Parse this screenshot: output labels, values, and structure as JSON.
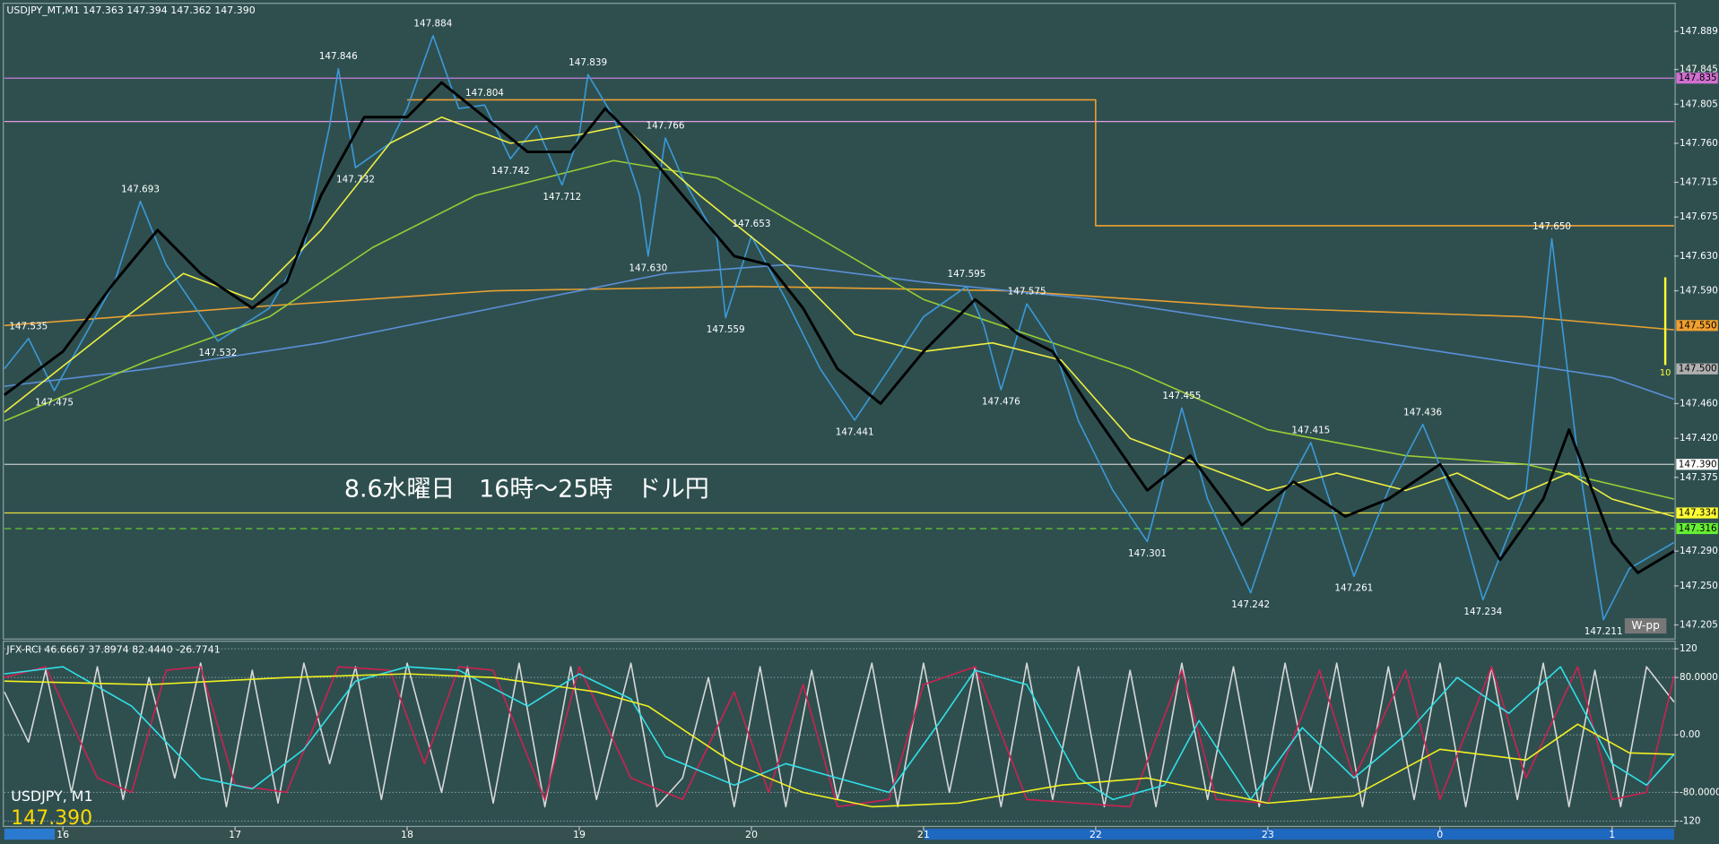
{
  "chart_data": [
    {
      "type": "line",
      "title": "USDJPY_MT,M1  147.363 147.394 147.362 147.390",
      "annotation_text": "8.6水曜日　16時～25時　ドル円",
      "symbol": "USDJPY, M1",
      "last_price": {
        "value": 147.39,
        "label": "147.390"
      },
      "pivot_label": "W-pp",
      "period_label": "10",
      "xlim": [
        15.66,
        25.36
      ],
      "xticks": [
        16,
        17,
        18,
        19,
        20,
        21,
        22,
        23,
        {
          "value": 24,
          "label": "0"
        },
        {
          "value": 25,
          "label": "1"
        }
      ],
      "ylim": [
        147.19,
        147.92
      ],
      "yticks": [
        147.889,
        147.845,
        147.805,
        {
          "value": 147.76,
          "label": "147.760"
        },
        147.715,
        147.675,
        {
          "value": 147.63,
          "label": "147.630"
        },
        {
          "value": 147.59,
          "label": "147.590"
        },
        {
          "value": 147.46,
          "label": "147.460"
        },
        {
          "value": 147.42,
          "label": "147.420"
        },
        147.375,
        {
          "value": 147.29,
          "label": "147.290"
        },
        {
          "value": 147.25,
          "label": "147.250"
        },
        147.205
      ],
      "levels": [
        {
          "value": 147.835,
          "color": "#c77dd6"
        },
        {
          "value": 147.785,
          "color": "#e29ae8"
        },
        {
          "value": 147.39,
          "color": "#c8c8c8"
        },
        {
          "value": 147.334,
          "color": "#e8e040"
        },
        {
          "value": 147.316,
          "color": "#66cc33",
          "dash": true
        }
      ],
      "price_tags": [
        {
          "value": 147.835,
          "color": "#d070d0"
        },
        {
          "value": 147.55,
          "label": "147.550",
          "color": "#f0a030"
        },
        {
          "value": 147.5,
          "label": "147.500",
          "color": "#b0b0b0"
        },
        {
          "value": 147.39,
          "label": "147.390",
          "color": "#ffffff"
        },
        {
          "value": 147.334,
          "color": "#ffff33"
        },
        {
          "value": 147.316,
          "color": "#66ee33"
        }
      ],
      "series": [
        {
          "color": "#f0a030",
          "x": [
            18,
            22,
            22,
            25.36
          ],
          "values": [
            147.81,
            147.81,
            147.665,
            147.665
          ]
        },
        {
          "color": "#e8a030",
          "x": [
            15.66,
            17,
            18.5,
            20,
            21.5,
            23,
            24.5,
            25.36
          ],
          "values": [
            147.55,
            147.57,
            147.59,
            147.595,
            147.59,
            147.57,
            147.56,
            147.545
          ]
        },
        {
          "color": "#5b8fd8",
          "x": [
            15.66,
            16.5,
            17.5,
            18.5,
            19.5,
            20.2,
            21,
            22,
            23,
            24,
            25,
            25.36
          ],
          "values": [
            147.48,
            147.5,
            147.53,
            147.57,
            147.61,
            147.62,
            147.6,
            147.58,
            147.55,
            147.52,
            147.49,
            147.465
          ]
        },
        {
          "color": "#9acd32",
          "x": [
            15.66,
            16.5,
            17.2,
            17.8,
            18.4,
            19.2,
            19.8,
            20.4,
            21,
            21.6,
            22.2,
            23,
            23.8,
            24.5,
            25.36
          ],
          "values": [
            147.44,
            147.51,
            147.56,
            147.64,
            147.7,
            147.74,
            147.72,
            147.65,
            147.58,
            147.54,
            147.5,
            147.43,
            147.4,
            147.39,
            147.35
          ]
        },
        {
          "color": "#3a9ad9",
          "x": [
            15.66,
            15.8,
            15.95,
            16.3,
            16.45,
            16.6,
            16.9,
            17.2,
            17.4,
            17.55,
            17.6,
            17.7,
            17.9,
            18,
            18.15,
            18.3,
            18.45,
            18.6,
            18.75,
            18.9,
            19,
            19.05,
            19.2,
            19.35,
            19.4,
            19.5,
            19.6,
            19.8,
            19.85,
            20,
            20.2,
            20.4,
            20.6,
            20.8,
            21,
            21.25,
            21.35,
            21.45,
            21.6,
            21.75,
            21.9,
            22.1,
            22.3,
            22.5,
            22.65,
            22.9,
            23.1,
            23.25,
            23.5,
            23.7,
            23.9,
            24.1,
            24.25,
            24.5,
            24.65,
            24.8,
            24.95,
            25.1,
            25.36
          ],
          "values": [
            147.5,
            147.535,
            147.475,
            147.6,
            147.693,
            147.62,
            147.532,
            147.57,
            147.64,
            147.78,
            147.846,
            147.732,
            147.76,
            147.8,
            147.884,
            147.8,
            147.804,
            147.742,
            147.78,
            147.712,
            147.77,
            147.839,
            147.79,
            147.7,
            147.63,
            147.766,
            147.72,
            147.65,
            147.559,
            147.653,
            147.58,
            147.5,
            147.441,
            147.5,
            147.56,
            147.595,
            147.55,
            147.476,
            147.575,
            147.53,
            147.44,
            147.36,
            147.301,
            147.455,
            147.35,
            147.242,
            147.36,
            147.415,
            147.261,
            147.36,
            147.436,
            147.34,
            147.234,
            147.36,
            147.65,
            147.4,
            147.211,
            147.27,
            147.3
          ]
        },
        {
          "color": "#f0f040",
          "x": [
            15.66,
            16.3,
            16.7,
            17.1,
            17.5,
            17.9,
            18.2,
            18.6,
            19,
            19.25,
            19.7,
            20.2,
            20.6,
            21,
            21.4,
            21.8,
            22.2,
            22.6,
            23,
            23.4,
            23.8,
            24.1,
            24.4,
            24.75,
            25,
            25.36
          ],
          "values": [
            147.45,
            147.55,
            147.61,
            147.58,
            147.66,
            147.76,
            147.79,
            147.76,
            147.77,
            147.78,
            147.7,
            147.62,
            147.54,
            147.52,
            147.53,
            147.51,
            147.42,
            147.39,
            147.36,
            147.38,
            147.36,
            147.38,
            147.35,
            147.38,
            147.35,
            147.33
          ]
        },
        {
          "color": "#000000",
          "x": [
            15.66,
            16,
            16.3,
            16.55,
            16.8,
            17.1,
            17.3,
            17.5,
            17.75,
            18,
            18.2,
            18.45,
            18.7,
            18.95,
            19.15,
            19.35,
            19.6,
            19.9,
            20.1,
            20.3,
            20.5,
            20.75,
            21,
            21.3,
            21.55,
            21.75,
            21.95,
            22.3,
            22.55,
            22.85,
            23.15,
            23.45,
            23.7,
            24,
            24.35,
            24.6,
            24.75,
            25,
            25.15,
            25.36
          ],
          "values": [
            147.47,
            147.52,
            147.6,
            147.66,
            147.61,
            147.57,
            147.6,
            147.7,
            147.79,
            147.79,
            147.83,
            147.79,
            147.75,
            147.75,
            147.8,
            147.76,
            147.7,
            147.63,
            147.62,
            147.57,
            147.5,
            147.46,
            147.52,
            147.58,
            147.54,
            147.52,
            147.46,
            147.36,
            147.4,
            147.32,
            147.37,
            147.33,
            147.35,
            147.39,
            147.28,
            147.35,
            147.43,
            147.3,
            147.265,
            147.29
          ]
        }
      ],
      "high_labels": [
        {
          "x": 15.8,
          "value": 147.535
        },
        {
          "x": 16.45,
          "value": 147.693
        },
        {
          "x": 17.6,
          "value": 147.846
        },
        {
          "x": 18.15,
          "value": 147.884
        },
        {
          "x": 18.45,
          "value": 147.804
        },
        {
          "x": 19.05,
          "value": 147.839
        },
        {
          "x": 19.5,
          "value": 147.766
        },
        {
          "x": 20,
          "value": 147.653
        },
        {
          "x": 21.25,
          "value": 147.595
        },
        {
          "x": 21.6,
          "value": 147.575
        },
        {
          "x": 22.5,
          "value": 147.455
        },
        {
          "x": 23.25,
          "value": 147.415
        },
        {
          "x": 23.9,
          "value": 147.436
        },
        {
          "x": 24.65,
          "value": 147.65,
          "label": "147.650"
        }
      ],
      "low_labels": [
        {
          "x": 15.95,
          "value": 147.475
        },
        {
          "x": 16.9,
          "value": 147.532
        },
        {
          "x": 17.7,
          "value": 147.732
        },
        {
          "x": 18.6,
          "value": 147.742
        },
        {
          "x": 18.9,
          "value": 147.712
        },
        {
          "x": 19.4,
          "value": 147.63,
          "label": "147.630"
        },
        {
          "x": 19.85,
          "value": 147.559
        },
        {
          "x": 20.6,
          "value": 147.441
        },
        {
          "x": 21.45,
          "value": 147.476
        },
        {
          "x": 22.3,
          "value": 147.301
        },
        {
          "x": 22.9,
          "value": 147.242
        },
        {
          "x": 23.5,
          "value": 147.261
        },
        {
          "x": 24.25,
          "value": 147.234
        },
        {
          "x": 24.95,
          "value": 147.211
        }
      ]
    },
    {
      "type": "line",
      "title": "JFX-RCI 46.6667 37.8974 82.4440 -26.7741",
      "grid": true,
      "ylim": [
        -126,
        129
      ],
      "yticks": [
        120,
        {
          "value": 80,
          "label": "80.0000"
        },
        {
          "value": 0,
          "label": "0.00"
        },
        {
          "value": -80,
          "label": "-80.0000"
        },
        -120
      ],
      "series": [
        {
          "color": "#d8d8d8",
          "x": [
            15.66,
            15.8,
            15.9,
            16.05,
            16.2,
            16.35,
            16.5,
            16.65,
            16.8,
            16.95,
            17.1,
            17.25,
            17.4,
            17.55,
            17.7,
            17.85,
            18,
            18.2,
            18.35,
            18.5,
            18.65,
            18.8,
            18.95,
            19.1,
            19.3,
            19.45,
            19.6,
            19.75,
            19.9,
            20.05,
            20.2,
            20.35,
            20.5,
            20.7,
            20.85,
            21,
            21.15,
            21.3,
            21.45,
            21.6,
            21.75,
            21.9,
            22.05,
            22.2,
            22.35,
            22.5,
            22.65,
            22.8,
            22.95,
            23.1,
            23.25,
            23.4,
            23.55,
            23.7,
            23.85,
            24,
            24.15,
            24.3,
            24.45,
            24.6,
            24.75,
            24.9,
            25.05,
            25.2,
            25.36
          ],
          "values": [
            60,
            -10,
            90,
            -80,
            95,
            -90,
            80,
            -60,
            100,
            -100,
            90,
            -95,
            100,
            -40,
            95,
            -90,
            100,
            -80,
            95,
            -95,
            100,
            -100,
            95,
            -90,
            100,
            -100,
            -60,
            80,
            -100,
            95,
            -100,
            90,
            -90,
            100,
            -100,
            100,
            -80,
            95,
            -100,
            100,
            -90,
            95,
            -100,
            90,
            -100,
            100,
            -90,
            95,
            -100,
            100,
            -80,
            100,
            -100,
            95,
            -90,
            100,
            -100,
            95,
            -90,
            100,
            -100,
            90,
            -100,
            95,
            46
          ]
        },
        {
          "color": "#d02050",
          "x": [
            15.66,
            15.9,
            16.2,
            16.4,
            16.6,
            16.8,
            17,
            17.3,
            17.6,
            17.9,
            18.1,
            18.3,
            18.5,
            18.8,
            19,
            19.3,
            19.6,
            19.9,
            20.1,
            20.3,
            20.5,
            20.8,
            21,
            21.3,
            21.6,
            21.9,
            22.2,
            22.5,
            22.7,
            23,
            23.3,
            23.5,
            23.8,
            24,
            24.3,
            24.5,
            24.8,
            25,
            25.2,
            25.36
          ],
          "values": [
            80,
            95,
            -60,
            -80,
            90,
            95,
            -70,
            -80,
            95,
            90,
            -40,
            95,
            90,
            -90,
            95,
            -60,
            -90,
            60,
            -80,
            70,
            -100,
            -90,
            70,
            95,
            -90,
            -95,
            -100,
            90,
            -90,
            -95,
            90,
            -60,
            90,
            -90,
            95,
            -60,
            95,
            -90,
            -80,
            82
          ]
        },
        {
          "color": "#30e0e8",
          "x": [
            15.66,
            16,
            16.4,
            16.8,
            17.1,
            17.4,
            17.7,
            18,
            18.3,
            18.7,
            19,
            19.3,
            19.5,
            19.9,
            20.2,
            20.5,
            20.8,
            21.1,
            21.3,
            21.6,
            21.9,
            22.1,
            22.4,
            22.6,
            22.9,
            23.2,
            23.5,
            23.8,
            24.1,
            24.4,
            24.7,
            25,
            25.2,
            25.36
          ],
          "values": [
            85,
            95,
            40,
            -60,
            -75,
            -20,
            75,
            95,
            90,
            40,
            85,
            50,
            -30,
            -70,
            -40,
            -60,
            -80,
            20,
            90,
            70,
            -60,
            -90,
            -70,
            20,
            -90,
            10,
            -60,
            0,
            80,
            30,
            95,
            -40,
            -70,
            -27
          ]
        },
        {
          "color": "#f0f020",
          "x": [
            15.66,
            16.5,
            17.3,
            18,
            18.5,
            19.1,
            19.4,
            19.9,
            20.3,
            20.7,
            21.2,
            21.8,
            22.3,
            22.7,
            23,
            23.5,
            24,
            24.5,
            24.8,
            25.1,
            25.36
          ],
          "values": [
            75,
            70,
            80,
            85,
            80,
            60,
            40,
            -40,
            -80,
            -100,
            -95,
            -70,
            -60,
            -80,
            -95,
            -85,
            -20,
            -35,
            15,
            -25,
            -27
          ]
        }
      ]
    }
  ]
}
